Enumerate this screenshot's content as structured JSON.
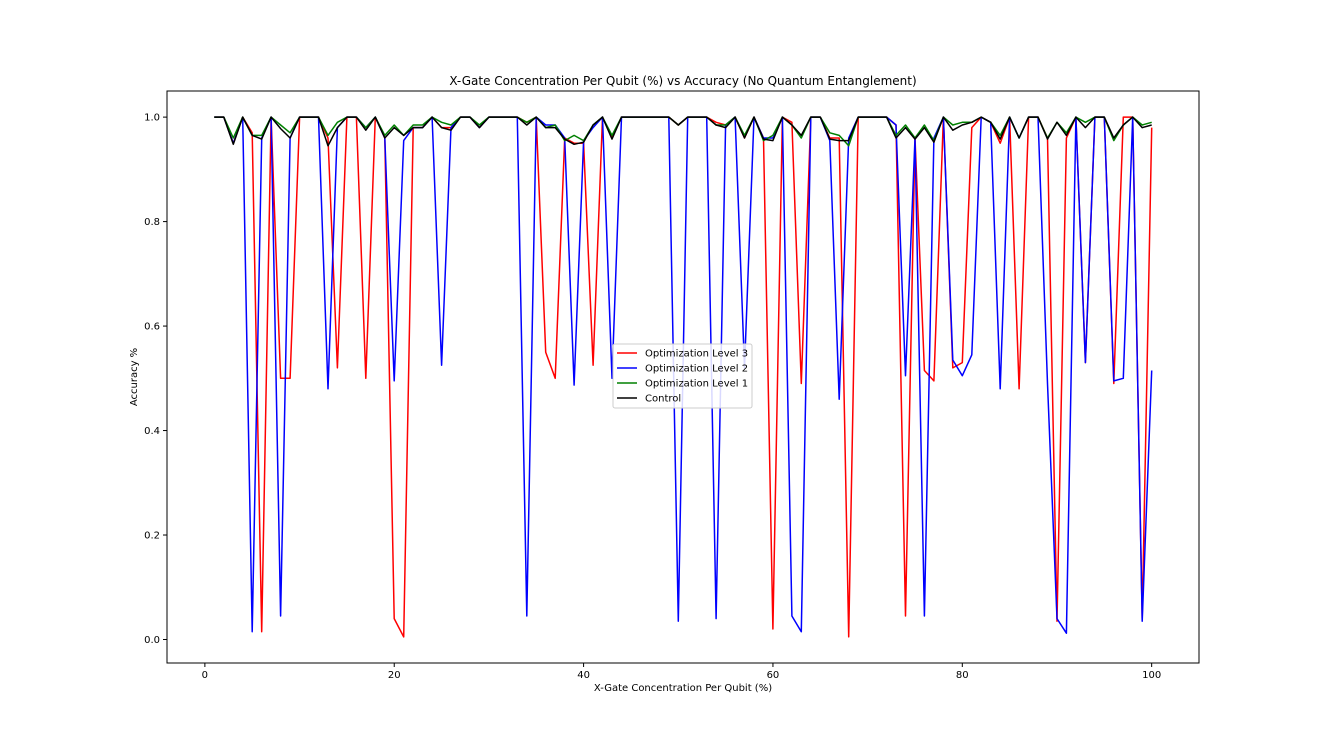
{
  "chart_data": {
    "type": "line",
    "title": "X-Gate Concentration Per Qubit (%) vs Accuracy (No Quantum Entanglement)",
    "xlabel": "X-Gate Concentration Per Qubit (%)",
    "ylabel": "Accuracy %",
    "xlim": [
      -4,
      105
    ],
    "ylim": [
      -0.045,
      1.05
    ],
    "xticks": [
      0,
      20,
      40,
      60,
      80,
      100
    ],
    "yticks": [
      0.0,
      0.2,
      0.4,
      0.6,
      0.8,
      1.0
    ],
    "xtick_labels": [
      "0",
      "20",
      "40",
      "60",
      "80",
      "100"
    ],
    "ytick_labels": [
      "0.0",
      "0.2",
      "0.4",
      "0.6",
      "0.8",
      "1.0"
    ],
    "grid": false,
    "legend_position": "center",
    "x": [
      1,
      2,
      3,
      4,
      5,
      6,
      7,
      8,
      9,
      10,
      11,
      12,
      13,
      14,
      15,
      16,
      17,
      18,
      19,
      20,
      21,
      22,
      23,
      24,
      25,
      26,
      27,
      28,
      29,
      30,
      31,
      32,
      33,
      34,
      35,
      36,
      37,
      38,
      39,
      40,
      41,
      42,
      43,
      44,
      45,
      46,
      47,
      48,
      49,
      50,
      51,
      52,
      53,
      54,
      55,
      56,
      57,
      58,
      59,
      60,
      61,
      62,
      63,
      64,
      65,
      66,
      67,
      68,
      69,
      70,
      71,
      72,
      73,
      74,
      75,
      76,
      77,
      78,
      79,
      80,
      81,
      82,
      83,
      84,
      85,
      86,
      87,
      88,
      89,
      90,
      91,
      92,
      93,
      94,
      95,
      96,
      97,
      98,
      99,
      100
    ],
    "series": [
      {
        "name": "Optimization Level 3",
        "color": "#ff0000",
        "values": [
          1.0,
          1.0,
          0.95,
          1.0,
          0.97,
          0.015,
          1.0,
          0.5,
          0.5,
          1.0,
          1.0,
          1.0,
          0.96,
          0.52,
          1.0,
          1.0,
          0.5,
          1.0,
          0.96,
          0.04,
          0.005,
          0.98,
          0.98,
          1.0,
          0.98,
          0.98,
          1.0,
          1.0,
          0.98,
          1.0,
          1.0,
          1.0,
          1.0,
          0.99,
          1.0,
          0.55,
          0.5,
          0.96,
          0.95,
          0.95,
          0.525,
          1.0,
          0.96,
          1.0,
          1.0,
          1.0,
          1.0,
          1.0,
          1.0,
          0.985,
          1.0,
          1.0,
          1.0,
          0.99,
          0.985,
          1.0,
          0.96,
          1.0,
          0.96,
          0.02,
          1.0,
          0.99,
          0.49,
          1.0,
          1.0,
          0.96,
          0.96,
          0.005,
          1.0,
          1.0,
          1.0,
          1.0,
          0.985,
          0.045,
          0.96,
          0.515,
          0.495,
          1.0,
          0.52,
          0.53,
          0.98,
          1.0,
          0.99,
          0.95,
          1.0,
          0.48,
          1.0,
          1.0,
          0.96,
          0.035,
          0.96,
          1.0,
          0.53,
          1.0,
          1.0,
          0.49,
          1.0,
          1.0,
          0.04,
          0.98
        ]
      },
      {
        "name": "Optimization Level 2",
        "color": "#0000ff",
        "values": [
          1.0,
          1.0,
          0.95,
          1.0,
          0.015,
          0.96,
          1.0,
          0.045,
          0.96,
          1.0,
          1.0,
          1.0,
          0.48,
          0.98,
          1.0,
          1.0,
          0.98,
          1.0,
          0.96,
          0.495,
          0.955,
          0.98,
          0.98,
          1.0,
          0.525,
          0.98,
          1.0,
          1.0,
          0.98,
          1.0,
          1.0,
          1.0,
          1.0,
          0.045,
          1.0,
          0.985,
          0.985,
          0.96,
          0.487,
          0.955,
          0.98,
          1.0,
          0.5,
          1.0,
          1.0,
          1.0,
          1.0,
          1.0,
          1.0,
          0.035,
          1.0,
          1.0,
          1.0,
          0.04,
          0.985,
          1.0,
          0.52,
          1.0,
          0.96,
          0.96,
          1.0,
          0.045,
          0.015,
          1.0,
          1.0,
          0.955,
          0.46,
          0.96,
          1.0,
          1.0,
          1.0,
          1.0,
          0.985,
          0.505,
          0.96,
          0.045,
          0.96,
          1.0,
          0.535,
          0.505,
          0.545,
          1.0,
          0.99,
          0.48,
          1.0,
          0.96,
          1.0,
          1.0,
          0.49,
          0.04,
          0.012,
          1.0,
          0.53,
          1.0,
          1.0,
          0.495,
          0.5,
          1.0,
          0.035,
          0.515
        ]
      },
      {
        "name": "Optimization Level 1",
        "color": "#008000",
        "values": [
          1.0,
          1.0,
          0.96,
          1.0,
          0.965,
          0.965,
          1.0,
          0.985,
          0.97,
          1.0,
          1.0,
          1.0,
          0.965,
          0.99,
          1.0,
          1.0,
          0.98,
          1.0,
          0.965,
          0.985,
          0.965,
          0.985,
          0.985,
          1.0,
          0.99,
          0.985,
          1.0,
          1.0,
          0.985,
          1.0,
          1.0,
          1.0,
          1.0,
          0.99,
          1.0,
          0.98,
          0.985,
          0.955,
          0.965,
          0.955,
          0.985,
          1.0,
          0.965,
          1.0,
          1.0,
          1.0,
          1.0,
          1.0,
          1.0,
          0.985,
          1.0,
          1.0,
          1.0,
          0.985,
          0.985,
          1.0,
          0.965,
          1.0,
          0.955,
          0.965,
          1.0,
          0.985,
          0.96,
          1.0,
          1.0,
          0.97,
          0.965,
          0.945,
          1.0,
          1.0,
          1.0,
          1.0,
          0.965,
          0.985,
          0.96,
          0.985,
          0.955,
          1.0,
          0.985,
          0.99,
          0.99,
          1.0,
          0.99,
          0.965,
          1.0,
          0.96,
          1.0,
          1.0,
          0.96,
          0.99,
          0.97,
          1.0,
          0.99,
          1.0,
          1.0,
          0.955,
          0.985,
          1.0,
          0.985,
          0.99
        ]
      },
      {
        "name": "Control",
        "color": "#000000",
        "values": [
          1.0,
          1.0,
          0.948,
          1.0,
          0.965,
          0.958,
          1.0,
          0.978,
          0.96,
          1.0,
          1.0,
          1.0,
          0.945,
          0.98,
          1.0,
          1.0,
          0.975,
          1.0,
          0.96,
          0.98,
          0.965,
          0.98,
          0.98,
          1.0,
          0.98,
          0.975,
          1.0,
          1.0,
          0.98,
          1.0,
          1.0,
          1.0,
          1.0,
          0.985,
          1.0,
          0.98,
          0.98,
          0.958,
          0.948,
          0.952,
          0.985,
          1.0,
          0.958,
          1.0,
          1.0,
          1.0,
          1.0,
          1.0,
          1.0,
          0.985,
          1.0,
          1.0,
          1.0,
          0.985,
          0.98,
          1.0,
          0.96,
          1.0,
          0.958,
          0.955,
          1.0,
          0.985,
          0.965,
          1.0,
          1.0,
          0.958,
          0.955,
          0.955,
          1.0,
          1.0,
          1.0,
          1.0,
          0.96,
          0.98,
          0.958,
          0.98,
          0.952,
          1.0,
          0.975,
          0.985,
          0.99,
          1.0,
          0.99,
          0.958,
          1.0,
          0.96,
          1.0,
          1.0,
          0.958,
          0.99,
          0.965,
          1.0,
          0.98,
          1.0,
          1.0,
          0.96,
          0.985,
          1.0,
          0.98,
          0.985
        ]
      }
    ]
  }
}
